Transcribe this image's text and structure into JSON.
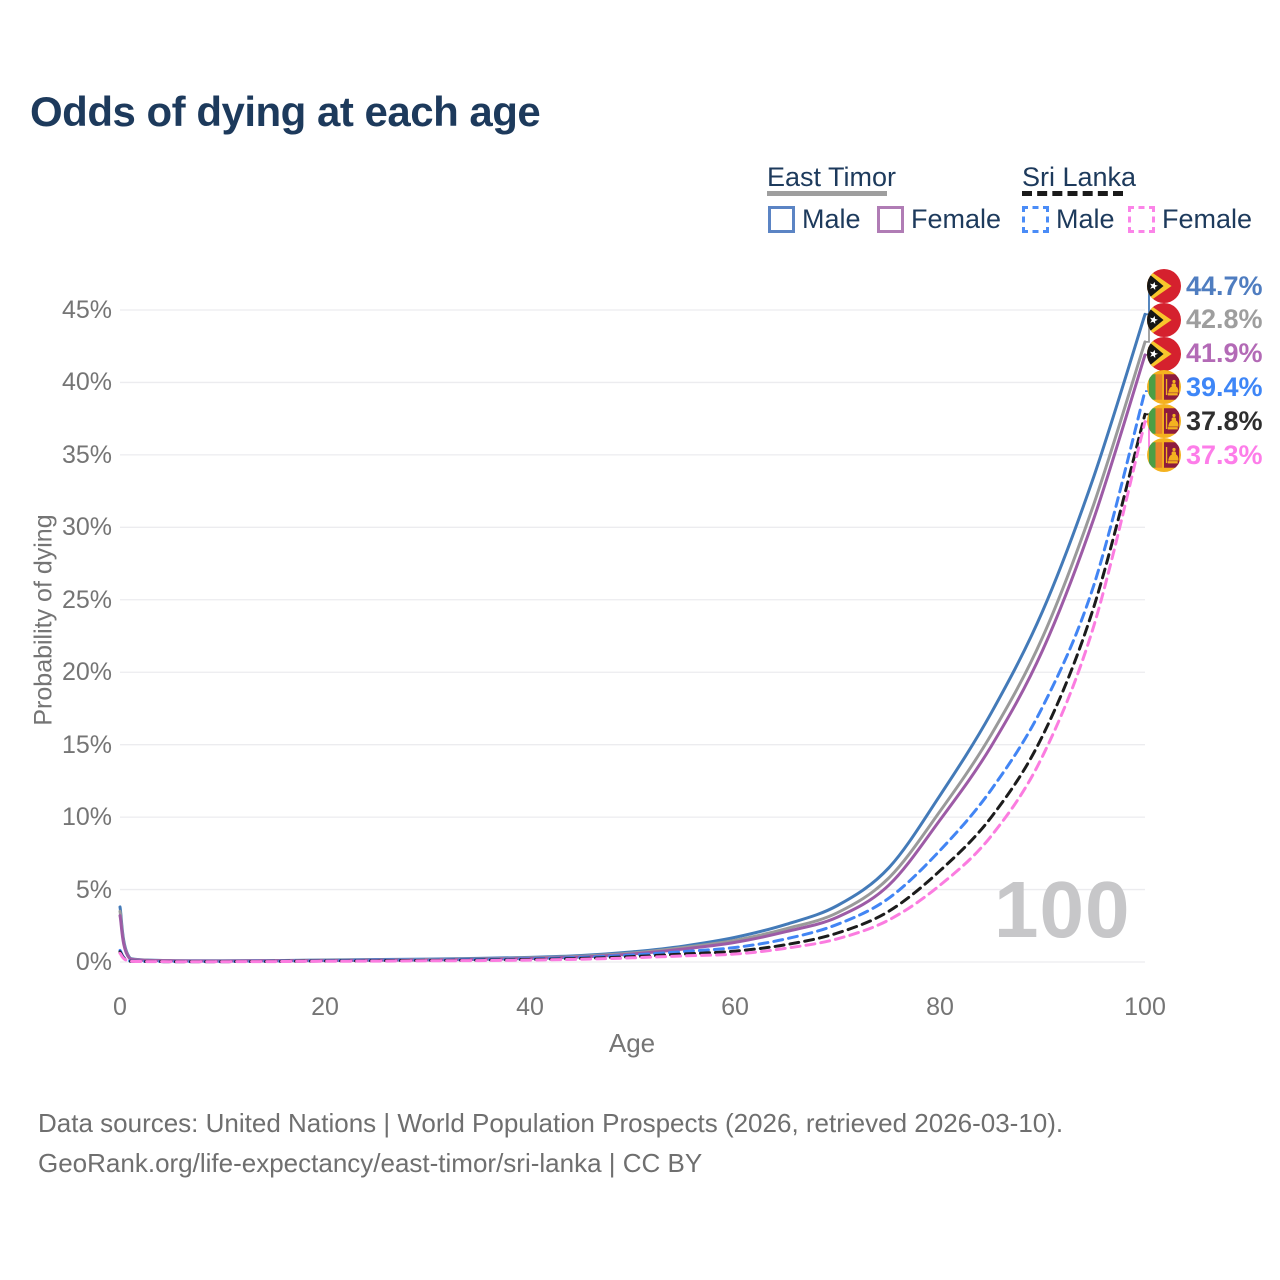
{
  "title": "Odds of dying at each age",
  "watermark": "100",
  "legend": {
    "groups": [
      {
        "label": "East Timor",
        "rule_color": "#9e9e9e",
        "rule_style": "solid",
        "items": [
          {
            "label": "Male",
            "color": "#5b84c4",
            "dashed": false
          },
          {
            "label": "Female",
            "color": "#b07cb5",
            "dashed": false
          }
        ]
      },
      {
        "label": "Sri Lanka",
        "rule_color": "#1a1a1a",
        "rule_style": "dashed",
        "items": [
          {
            "label": "Male",
            "color": "#4a8cf7",
            "dashed": true
          },
          {
            "label": "Female",
            "color": "#fb84e8",
            "dashed": true
          }
        ]
      }
    ]
  },
  "footer": {
    "line1": "Data sources: United Nations | World Population Prospects (2026, retrieved 2026-03-10).",
    "line2": "GeoRank.org/life-expectancy/east-timor/sri-lanka | CC BY"
  },
  "chart_data": {
    "type": "line",
    "title": "Odds of dying at each age",
    "xlabel": "Age",
    "ylabel": "Probability of dying",
    "xlim": [
      0,
      100
    ],
    "ylim": [
      0,
      45
    ],
    "x_ticks": [
      0,
      20,
      40,
      60,
      80,
      100
    ],
    "y_ticks": [
      "0%",
      "5%",
      "10%",
      "15%",
      "20%",
      "25%",
      "30%",
      "35%",
      "40%",
      "45%"
    ],
    "grid": "horizontal",
    "legend_position": "top-right",
    "hovered_age": 100,
    "x": [
      0,
      1,
      5,
      10,
      15,
      20,
      25,
      30,
      35,
      40,
      45,
      50,
      55,
      60,
      65,
      70,
      75,
      80,
      85,
      90,
      95,
      100
    ],
    "series": [
      {
        "name": "East Timor Male",
        "line_color": "#437ab8",
        "label_color": "#4f7dc0",
        "dashed": false,
        "flag_icon": "east-timor-flag-icon",
        "end_label": "44.7%",
        "values": [
          3.8,
          0.25,
          0.1,
          0.08,
          0.1,
          0.14,
          0.17,
          0.2,
          0.25,
          0.32,
          0.45,
          0.7,
          1.1,
          1.7,
          2.6,
          3.9,
          6.5,
          11.5,
          17.2,
          24.2,
          33.5,
          44.7
        ]
      },
      {
        "name": "East Timor Total",
        "line_color": "#9a9a9a",
        "label_color": "#9e9e9e",
        "dashed": false,
        "flag_icon": "east-timor-flag-icon",
        "end_label": "42.8%",
        "values": [
          3.5,
          0.22,
          0.09,
          0.07,
          0.09,
          0.12,
          0.14,
          0.17,
          0.21,
          0.28,
          0.4,
          0.62,
          1.0,
          1.5,
          2.3,
          3.4,
          5.8,
          10.4,
          15.7,
          22.4,
          31.6,
          42.8
        ]
      },
      {
        "name": "East Timor Female",
        "line_color": "#9d5ba6",
        "label_color": "#b36ab6",
        "dashed": false,
        "flag_icon": "east-timor-flag-icon",
        "end_label": "41.9%",
        "values": [
          3.2,
          0.2,
          0.08,
          0.06,
          0.08,
          0.1,
          0.12,
          0.14,
          0.18,
          0.24,
          0.35,
          0.55,
          0.9,
          1.35,
          2.1,
          3.1,
          5.3,
          9.8,
          14.9,
          21.5,
          30.6,
          41.9
        ]
      },
      {
        "name": "Sri Lanka Male",
        "line_color": "#4285f4",
        "label_color": "#3e86f7",
        "dashed": true,
        "flag_icon": "sri-lanka-flag-icon",
        "end_label": "39.4%",
        "values": [
          0.8,
          0.06,
          0.03,
          0.03,
          0.05,
          0.09,
          0.12,
          0.14,
          0.17,
          0.22,
          0.32,
          0.48,
          0.72,
          1.0,
          1.6,
          2.6,
          4.4,
          7.7,
          11.9,
          17.6,
          26.0,
          39.4
        ]
      },
      {
        "name": "Sri Lanka Total",
        "line_color": "#1c1c1c",
        "label_color": "#2e2e2e",
        "dashed": true,
        "flag_icon": "sri-lanka-flag-icon",
        "end_label": "37.8%",
        "values": [
          0.7,
          0.05,
          0.03,
          0.03,
          0.04,
          0.07,
          0.09,
          0.11,
          0.13,
          0.17,
          0.25,
          0.37,
          0.55,
          0.75,
          1.2,
          2.0,
          3.5,
          6.3,
          10.0,
          15.6,
          24.5,
          37.8
        ]
      },
      {
        "name": "Sri Lanka Female",
        "line_color": "#fb7ce0",
        "label_color": "#fd7de9",
        "dashed": true,
        "flag_icon": "sri-lanka-flag-icon",
        "end_label": "37.3%",
        "values": [
          0.6,
          0.05,
          0.02,
          0.02,
          0.03,
          0.05,
          0.06,
          0.08,
          0.1,
          0.13,
          0.19,
          0.29,
          0.42,
          0.55,
          0.95,
          1.6,
          2.9,
          5.3,
          8.7,
          14.2,
          23.2,
          37.3
        ]
      }
    ]
  }
}
